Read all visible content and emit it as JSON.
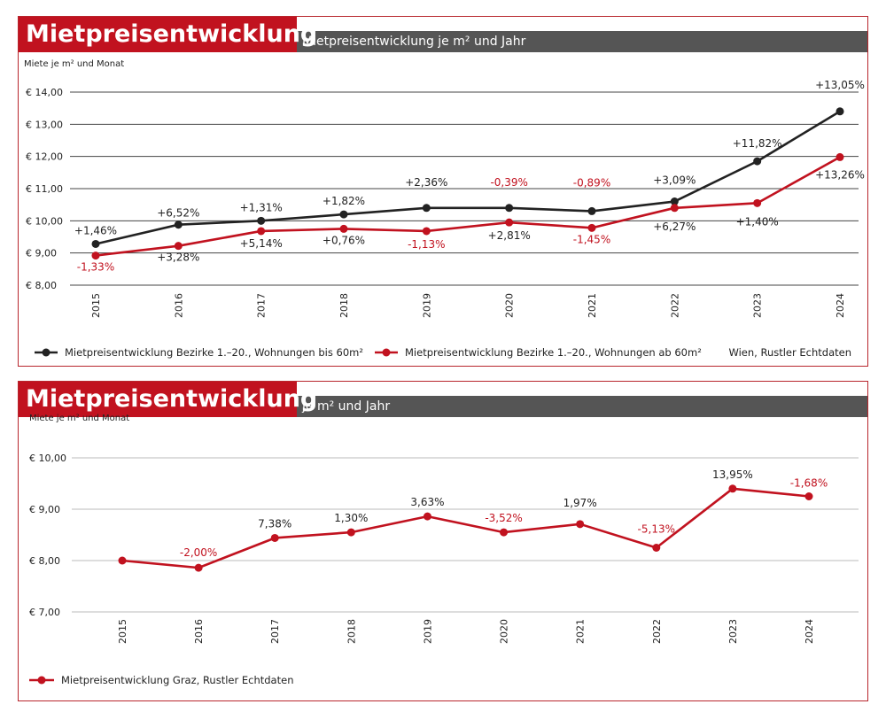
{
  "colors": {
    "red": "#c1121f",
    "black": "#222222",
    "header_grey": "#555555",
    "pct_red": "#c1121f"
  },
  "charts": [
    {
      "header_title": "Mietpreisentwicklung",
      "header_subtitle": "Mietpreisentwicklung je m² und Jahr",
      "ylabel": "Miete je m² und Monat",
      "source": "Wien, Rustler Echtdaten",
      "chart_data": {
        "type": "line",
        "x": [
          "2015",
          "2016",
          "2017",
          "2018",
          "2019",
          "2020",
          "2021",
          "2022",
          "2023",
          "2024"
        ],
        "ylim": [
          8,
          14
        ],
        "yticks": [
          8,
          9,
          10,
          11,
          12,
          13,
          14
        ],
        "ytick_labels": [
          "€ 8,00",
          "€ 9,00",
          "€ 10,00",
          "€ 11,00",
          "€ 12,00",
          "€ 13,00",
          "€ 14,00"
        ],
        "grid": true,
        "legend_position": "bottom",
        "series": [
          {
            "name": "Mietpreisentwicklung Bezirke 1.–20., Wohnungen bis 60m²",
            "color": "#222222",
            "values": [
              9.28,
              9.88,
              10.0,
              10.2,
              10.4,
              10.4,
              10.3,
              10.6,
              11.85,
              13.4
            ],
            "labels": [
              "+1,46%",
              "+6,52%",
              "+1,31%",
              "+1,82%",
              "+2,36%",
              "-0,39%",
              "-0,89%",
              "+3,09%",
              "+11,82%",
              "+13,05%"
            ],
            "label_colors": [
              "#222",
              "#222",
              "#222",
              "#222",
              "#222",
              "#c1121f",
              "#c1121f",
              "#222",
              "#222",
              "#222"
            ]
          },
          {
            "name": "Mietpreisentwicklung Bezirke 1.–20., Wohnungen ab 60m²",
            "color": "#c1121f",
            "values": [
              8.92,
              9.22,
              9.68,
              9.75,
              9.68,
              9.95,
              9.78,
              10.4,
              10.55,
              11.98
            ],
            "labels": [
              "-1,33%",
              "+3,28%",
              "+5,14%",
              "+0,76%",
              "-1,13%",
              "+2,81%",
              "-1,45%",
              "+6,27%",
              "+1,40%",
              "+13,26%"
            ],
            "label_colors": [
              "#c1121f",
              "#222",
              "#222",
              "#222",
              "#c1121f",
              "#222",
              "#c1121f",
              "#222",
              "#222",
              "#222"
            ]
          }
        ]
      }
    },
    {
      "header_title": "Mietpreisentwicklung",
      "header_subtitle": "je m² und Jahr",
      "ylabel": "Miete je m² und Monat",
      "source": "",
      "chart_data": {
        "type": "line",
        "x": [
          "2015",
          "2016",
          "2017",
          "2018",
          "2019",
          "2020",
          "2021",
          "2022",
          "2023",
          "2024"
        ],
        "ylim": [
          7,
          10
        ],
        "yticks": [
          7,
          8,
          9,
          10
        ],
        "ytick_labels": [
          "€ 7,00",
          "€ 8,00",
          "€ 9,00",
          "€ 10,00"
        ],
        "grid": true,
        "legend_position": "bottom-left",
        "series": [
          {
            "name": "Mietpreisentwicklung Graz, Rustler Echtdaten",
            "color": "#c1121f",
            "values": [
              8.0,
              7.86,
              8.44,
              8.55,
              8.86,
              8.55,
              8.71,
              8.25,
              9.4,
              9.25
            ],
            "labels": [
              "",
              "-2,00%",
              "7,38%",
              "1,30%",
              "3,63%",
              "-3,52%",
              "1,97%",
              "-5,13%",
              "13,95%",
              "-1,68%"
            ],
            "label_colors": [
              "#222",
              "#c1121f",
              "#222",
              "#222",
              "#222",
              "#c1121f",
              "#222",
              "#c1121f",
              "#222",
              "#c1121f"
            ]
          }
        ]
      }
    }
  ]
}
